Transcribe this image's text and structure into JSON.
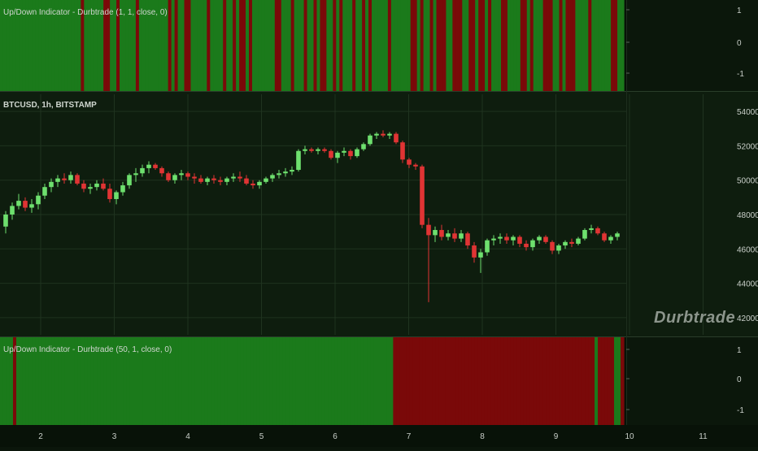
{
  "top_pane": {
    "title": "Up/Down Indicator - Durbtrade (1, 1, close, 0)",
    "y_ticks": [
      "1",
      "0",
      "-1"
    ]
  },
  "main_pane": {
    "title": "BTCUSD, 1h, BITSTAMP",
    "y_ticks": [
      "54000",
      "52000",
      "50000",
      "48000",
      "46000",
      "44000",
      "42000"
    ],
    "watermark": "Durbtrade"
  },
  "bottom_pane": {
    "title": "Up/Down Indicator - Durbtrade (50, 1, close, 0)",
    "y_ticks": [
      "1",
      "0",
      "-1"
    ]
  },
  "time_axis": {
    "labels": [
      "2",
      "3",
      "4",
      "5",
      "6",
      "7",
      "8",
      "9",
      "10",
      "11"
    ]
  },
  "colors": {
    "up": "#1b7a1b",
    "down": "#7a0909",
    "candle_up": "#6ee06e",
    "candle_down": "#e03434",
    "background": "#0b160b",
    "grid": "#1f331f",
    "text": "#cfd6cf"
  },
  "chart_data": [
    {
      "type": "bar",
      "title": "Up/Down Indicator - Durbtrade (1, 1, close, 0)",
      "ylim": [
        -1,
        1
      ],
      "description_values": "+1 = up (green), -1 = down (red)",
      "values": [
        1,
        1,
        1,
        1,
        1,
        1,
        1,
        1,
        1,
        1,
        1,
        1,
        1,
        1,
        1,
        1,
        1,
        1,
        1,
        1,
        1,
        1,
        1,
        1,
        1,
        -1,
        1,
        1,
        1,
        1,
        1,
        1,
        -1,
        -1,
        1,
        1,
        -1,
        1,
        1,
        1,
        1,
        1,
        -1,
        1,
        1,
        1,
        1,
        1,
        1,
        1,
        1,
        1,
        -1,
        1,
        -1,
        1,
        1,
        -1,
        -1,
        1,
        1,
        1,
        1,
        1,
        -1,
        1,
        1,
        1,
        1,
        -1,
        1,
        1,
        -1,
        1,
        -1,
        -1,
        1,
        -1,
        1,
        1,
        1,
        1,
        1,
        1,
        1,
        -1,
        -1,
        1,
        1,
        1,
        -1,
        1,
        1,
        1,
        -1,
        1,
        1,
        -1,
        1,
        -1,
        -1,
        1,
        1,
        -1,
        1,
        -1,
        1,
        1,
        1,
        -1,
        1,
        1,
        -1,
        1,
        -1,
        1,
        1,
        1,
        1,
        1,
        -1,
        1,
        1,
        1,
        1,
        1,
        1,
        -1,
        -1,
        1,
        -1,
        1,
        1,
        -1,
        1,
        -1,
        -1,
        -1,
        1,
        1,
        -1,
        -1,
        -1,
        1,
        1,
        -1,
        -1,
        1,
        -1,
        -1,
        1,
        -1,
        1,
        1,
        1,
        -1,
        -1,
        1,
        1,
        1,
        1,
        -1,
        -1,
        1,
        -1,
        1,
        1,
        1,
        -1,
        -1,
        -1,
        1,
        1,
        -1,
        1,
        -1,
        -1,
        -1,
        1,
        1,
        1,
        1,
        -1,
        1,
        1,
        1,
        1,
        1,
        1,
        -1,
        -1,
        1,
        1
      ]
    },
    {
      "type": "candlestick",
      "title": "BTCUSD, 1h, BITSTAMP",
      "ylim": [
        41000,
        55000
      ],
      "x_labels": [
        "2",
        "3",
        "4",
        "5",
        "6",
        "7",
        "8",
        "9",
        "10"
      ],
      "ohlc": [
        [
          47300,
          48200,
          46900,
          48000
        ],
        [
          48000,
          48700,
          47700,
          48500
        ],
        [
          48500,
          49200,
          48300,
          48800
        ],
        [
          48800,
          49000,
          48200,
          48400
        ],
        [
          48400,
          48900,
          48100,
          48600
        ],
        [
          48600,
          49300,
          48300,
          49100
        ],
        [
          49100,
          49800,
          48900,
          49600
        ],
        [
          49600,
          50100,
          49300,
          49900
        ],
        [
          49900,
          50300,
          49600,
          50100
        ],
        [
          50100,
          50400,
          49800,
          50000
        ],
        [
          50000,
          50500,
          49800,
          50300
        ],
        [
          50300,
          50400,
          49700,
          49800
        ],
        [
          49800,
          50000,
          49300,
          49500
        ],
        [
          49500,
          49800,
          49200,
          49600
        ],
        [
          49600,
          50000,
          49400,
          49800
        ],
        [
          49800,
          50100,
          49400,
          49500
        ],
        [
          49500,
          49800,
          48700,
          48900
        ],
        [
          48900,
          49400,
          48600,
          49300
        ],
        [
          49300,
          49900,
          49100,
          49700
        ],
        [
          49700,
          50400,
          49500,
          50300
        ],
        [
          50300,
          50700,
          49900,
          50400
        ],
        [
          50400,
          50900,
          50200,
          50700
        ],
        [
          50700,
          51100,
          50400,
          50900
        ],
        [
          50900,
          51000,
          50600,
          50700
        ],
        [
          50700,
          50800,
          50200,
          50400
        ],
        [
          50400,
          50500,
          49900,
          50000
        ],
        [
          50000,
          50400,
          49800,
          50300
        ],
        [
          50300,
          50600,
          50000,
          50400
        ],
        [
          50400,
          50500,
          50000,
          50200
        ],
        [
          50200,
          50400,
          49800,
          50100
        ],
        [
          50100,
          50300,
          49800,
          49900
        ],
        [
          49900,
          50200,
          49700,
          50100
        ],
        [
          50100,
          50300,
          49800,
          50000
        ],
        [
          50000,
          50200,
          49700,
          49900
        ],
        [
          49900,
          50200,
          49700,
          50100
        ],
        [
          50100,
          50400,
          49900,
          50200
        ],
        [
          50200,
          50500,
          49900,
          50100
        ],
        [
          50100,
          50300,
          49700,
          49800
        ],
        [
          49800,
          50000,
          49500,
          49700
        ],
        [
          49700,
          50000,
          49500,
          49900
        ],
        [
          49900,
          50200,
          49800,
          50100
        ],
        [
          50100,
          50400,
          49900,
          50300
        ],
        [
          50300,
          50600,
          50100,
          50400
        ],
        [
          50400,
          50700,
          50200,
          50500
        ],
        [
          50500,
          50800,
          50300,
          50600
        ],
        [
          50600,
          51800,
          50500,
          51700
        ],
        [
          51700,
          52000,
          51500,
          51800
        ],
        [
          51800,
          51900,
          51600,
          51700
        ],
        [
          51700,
          51900,
          51500,
          51800
        ],
        [
          51800,
          51900,
          51600,
          51700
        ],
        [
          51700,
          51800,
          51200,
          51300
        ],
        [
          51300,
          51700,
          51000,
          51600
        ],
        [
          51600,
          51900,
          51400,
          51700
        ],
        [
          51700,
          51800,
          51200,
          51400
        ],
        [
          51400,
          51900,
          51300,
          51800
        ],
        [
          51800,
          52200,
          51700,
          52100
        ],
        [
          52100,
          52700,
          52000,
          52600
        ],
        [
          52600,
          52800,
          52400,
          52700
        ],
        [
          52700,
          52900,
          52500,
          52600
        ],
        [
          52600,
          52800,
          52400,
          52700
        ],
        [
          52700,
          52800,
          52100,
          52200
        ],
        [
          52200,
          52300,
          51000,
          51200
        ],
        [
          51200,
          51300,
          50700,
          50900
        ],
        [
          50900,
          51000,
          50600,
          50800
        ],
        [
          50800,
          50900,
          47200,
          47400
        ],
        [
          47400,
          47800,
          42900,
          46800
        ],
        [
          46800,
          47300,
          46400,
          47100
        ],
        [
          47100,
          47400,
          46500,
          46700
        ],
        [
          46700,
          47100,
          46500,
          46900
        ],
        [
          46900,
          47200,
          46400,
          46600
        ],
        [
          46600,
          47100,
          46400,
          46900
        ],
        [
          46900,
          47000,
          46000,
          46200
        ],
        [
          46200,
          46400,
          45200,
          45500
        ],
        [
          45500,
          46000,
          44600,
          45800
        ],
        [
          45800,
          46600,
          45600,
          46500
        ],
        [
          46500,
          46800,
          46200,
          46600
        ],
        [
          46600,
          46900,
          46300,
          46700
        ],
        [
          46700,
          46900,
          46300,
          46500
        ],
        [
          46500,
          46800,
          46200,
          46700
        ],
        [
          46700,
          46800,
          46100,
          46300
        ],
        [
          46300,
          46500,
          45900,
          46100
        ],
        [
          46100,
          46600,
          45900,
          46500
        ],
        [
          46500,
          46800,
          46300,
          46700
        ],
        [
          46700,
          46800,
          46300,
          46400
        ],
        [
          46400,
          46500,
          45700,
          45900
        ],
        [
          45900,
          46300,
          45700,
          46200
        ],
        [
          46200,
          46500,
          46000,
          46400
        ],
        [
          46400,
          46600,
          46100,
          46300
        ],
        [
          46300,
          46700,
          46200,
          46600
        ],
        [
          46600,
          47200,
          46500,
          47100
        ],
        [
          47100,
          47400,
          46900,
          47200
        ],
        [
          47200,
          47300,
          46800,
          46900
        ],
        [
          46900,
          47000,
          46400,
          46500
        ],
        [
          46500,
          46800,
          46300,
          46700
        ],
        [
          46700,
          47000,
          46500,
          46900
        ]
      ]
    },
    {
      "type": "bar",
      "title": "Up/Down Indicator - Durbtrade (50, 1, close, 0)",
      "ylim": [
        -1,
        1
      ],
      "description_values": "+1 = up (green), -1 = down (red)",
      "values": [
        1,
        1,
        1,
        1,
        -1,
        1,
        1,
        1,
        1,
        1,
        1,
        1,
        1,
        1,
        1,
        1,
        1,
        1,
        1,
        1,
        1,
        1,
        1,
        1,
        1,
        1,
        1,
        1,
        1,
        1,
        1,
        1,
        1,
        1,
        1,
        1,
        1,
        1,
        1,
        1,
        1,
        1,
        1,
        1,
        1,
        1,
        1,
        1,
        1,
        1,
        1,
        1,
        1,
        1,
        1,
        1,
        1,
        1,
        1,
        1,
        1,
        1,
        1,
        1,
        1,
        1,
        1,
        1,
        1,
        1,
        1,
        1,
        1,
        1,
        1,
        1,
        1,
        1,
        1,
        1,
        1,
        1,
        1,
        1,
        1,
        1,
        1,
        1,
        1,
        1,
        1,
        1,
        1,
        1,
        1,
        1,
        1,
        1,
        1,
        1,
        1,
        1,
        1,
        1,
        1,
        1,
        1,
        1,
        1,
        1,
        1,
        1,
        1,
        1,
        1,
        1,
        1,
        1,
        1,
        1,
        1,
        -1,
        -1,
        -1,
        -1,
        -1,
        -1,
        -1,
        -1,
        -1,
        -1,
        -1,
        -1,
        -1,
        -1,
        -1,
        -1,
        -1,
        -1,
        -1,
        -1,
        -1,
        -1,
        -1,
        -1,
        -1,
        -1,
        -1,
        -1,
        -1,
        -1,
        -1,
        -1,
        -1,
        -1,
        -1,
        -1,
        -1,
        -1,
        -1,
        -1,
        -1,
        -1,
        -1,
        -1,
        -1,
        -1,
        -1,
        -1,
        -1,
        -1,
        -1,
        -1,
        -1,
        -1,
        -1,
        -1,
        -1,
        -1,
        -1,
        -1,
        -1,
        -1,
        1,
        -1,
        -1,
        -1,
        -1,
        -1,
        1,
        1,
        -1
      ]
    }
  ]
}
